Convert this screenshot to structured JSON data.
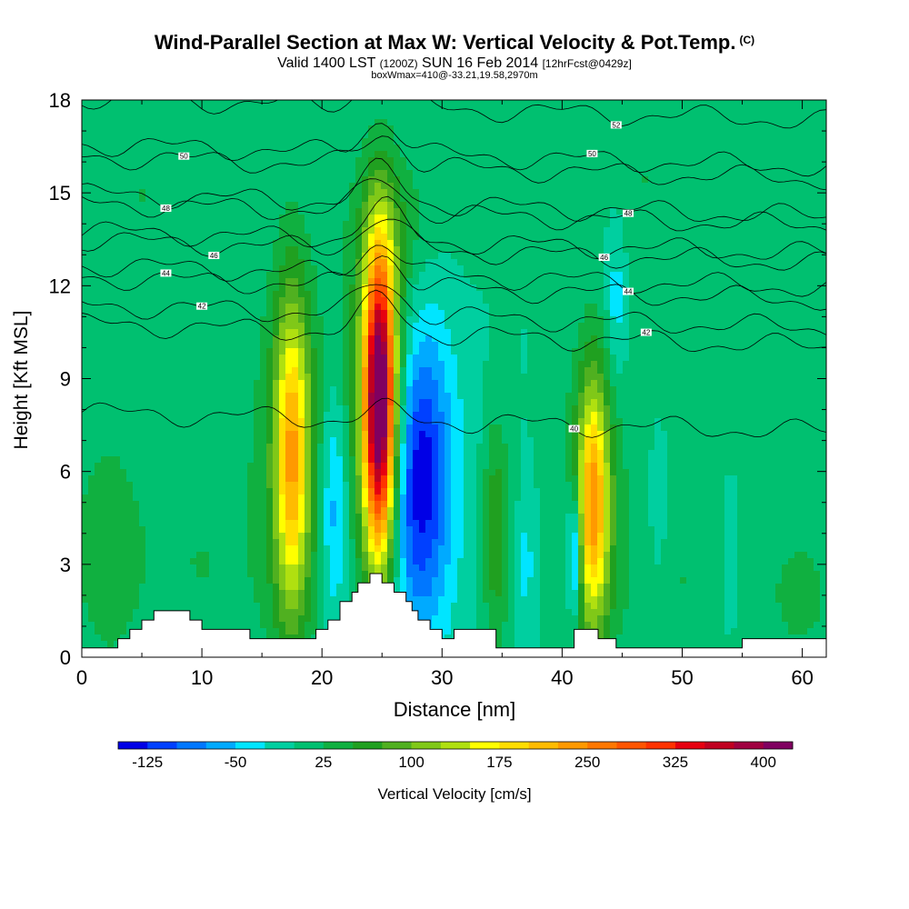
{
  "title": "Wind-Parallel Section at Max W: Vertical Velocity & Pot.Temp.",
  "copyright": "(C)",
  "subtitle": {
    "valid": "Valid 1400 LST",
    "utc": "(1200Z)",
    "date": "SUN 16 Feb 2014",
    "forecast": "[12hrFcst@0429z]"
  },
  "subtitle2": "boxWmax=410@-33.21,19.58,2970m",
  "chart_data": {
    "type": "heatmap",
    "xlabel": "Distance [nm]",
    "ylabel": "Height [Kft MSL]",
    "xlim": [
      0,
      62
    ],
    "ylim": [
      0,
      18
    ],
    "xticks": [
      0,
      10,
      20,
      30,
      40,
      50,
      60
    ],
    "yticks": [
      0,
      3,
      6,
      9,
      12,
      15,
      18
    ],
    "background_value": 0,
    "updrafts_downdrafts": [
      {
        "x": 17.5,
        "z": 6.5,
        "sx": 1.0,
        "sz": 3.6,
        "peak": 175
      },
      {
        "x": 17.5,
        "z": 6.5,
        "sx": 2.2,
        "sz": 4.5,
        "peak": 60
      },
      {
        "x": 24.8,
        "z": 8.2,
        "sx": 0.9,
        "sz": 3.5,
        "peak": 380
      },
      {
        "x": 24.8,
        "z": 8.2,
        "sx": 1.8,
        "sz": 4.2,
        "peak": 120
      },
      {
        "x": 21.0,
        "z": 5.0,
        "sx": 0.8,
        "sz": 2.6,
        "peak": -75
      },
      {
        "x": 28.0,
        "z": 5.8,
        "sx": 1.7,
        "sz": 3.2,
        "peak": -125
      },
      {
        "x": 28.0,
        "z": 5.8,
        "sx": 3.0,
        "sz": 4.3,
        "peak": -35
      },
      {
        "x": 42.6,
        "z": 5.0,
        "sx": 0.9,
        "sz": 2.8,
        "peak": 185
      },
      {
        "x": 42.6,
        "z": 5.0,
        "sx": 1.8,
        "sz": 3.6,
        "peak": 60
      },
      {
        "x": 41.0,
        "z": 3.4,
        "sx": 0.4,
        "sz": 1.5,
        "peak": -120
      },
      {
        "x": 34.5,
        "z": 4.0,
        "sx": 0.8,
        "sz": 2.6,
        "peak": 75
      },
      {
        "x": 2.0,
        "z": 3.5,
        "sx": 2.5,
        "sz": 3.5,
        "peak": 35
      },
      {
        "x": 10.0,
        "z": 3.0,
        "sx": 3.5,
        "sz": 3.0,
        "peak": 25
      },
      {
        "x": 50.0,
        "z": 2.5,
        "sx": 4.0,
        "sz": 2.5,
        "peak": 25
      },
      {
        "x": 60.0,
        "z": 2.0,
        "sx": 2.5,
        "sz": 2.0,
        "peak": 30
      },
      {
        "x": 54.0,
        "z": 3.0,
        "sx": 0.5,
        "sz": 1.5,
        "peak": -45
      },
      {
        "x": 48.0,
        "z": 4.5,
        "sx": 0.5,
        "sz": 1.5,
        "peak": -35
      },
      {
        "x": 37.0,
        "z": 3.0,
        "sx": 0.5,
        "sz": 1.5,
        "peak": -35
      },
      {
        "x": 44.5,
        "z": 11.5,
        "sx": 0.6,
        "sz": 1.8,
        "peak": -45
      },
      {
        "x": 26.0,
        "z": 14.0,
        "sx": 2.5,
        "sz": 1.6,
        "peak": 35
      },
      {
        "x": 5.0,
        "z": 15.0,
        "sx": 2.0,
        "sz": 2.5,
        "peak": 25
      },
      {
        "x": 33.0,
        "z": 16.0,
        "sx": 2.0,
        "sz": 2.0,
        "peak": 25
      },
      {
        "x": 47.0,
        "z": 15.5,
        "sx": 2.0,
        "sz": 2.5,
        "peak": 25
      },
      {
        "x": 58.0,
        "z": 14.0,
        "sx": 2.0,
        "sz": 3.0,
        "peak": 25
      }
    ],
    "terrain": [
      [
        0,
        0.3
      ],
      [
        3,
        0.3
      ],
      [
        3,
        0.6
      ],
      [
        4,
        0.6
      ],
      [
        4,
        0.9
      ],
      [
        5,
        0.9
      ],
      [
        5,
        1.2
      ],
      [
        6,
        1.2
      ],
      [
        6,
        1.5
      ],
      [
        9,
        1.5
      ],
      [
        9,
        1.2
      ],
      [
        10,
        1.2
      ],
      [
        10,
        0.9
      ],
      [
        14,
        0.9
      ],
      [
        14,
        0.6
      ],
      [
        19.5,
        0.6
      ],
      [
        19.5,
        0.9
      ],
      [
        20.5,
        0.9
      ],
      [
        20.5,
        1.2
      ],
      [
        21.5,
        1.2
      ],
      [
        21.5,
        1.8
      ],
      [
        22.5,
        1.8
      ],
      [
        22.5,
        2.1
      ],
      [
        23,
        2.1
      ],
      [
        23,
        2.4
      ],
      [
        24,
        2.4
      ],
      [
        24,
        2.7
      ],
      [
        25,
        2.7
      ],
      [
        25,
        2.4
      ],
      [
        26,
        2.4
      ],
      [
        26,
        2.1
      ],
      [
        27,
        2.1
      ],
      [
        27,
        1.8
      ],
      [
        27.5,
        1.8
      ],
      [
        27.5,
        1.5
      ],
      [
        28,
        1.5
      ],
      [
        28,
        1.2
      ],
      [
        29,
        1.2
      ],
      [
        29,
        0.9
      ],
      [
        30,
        0.9
      ],
      [
        30,
        0.6
      ],
      [
        31,
        0.6
      ],
      [
        31,
        0.9
      ],
      [
        34.5,
        0.9
      ],
      [
        34.5,
        0.3
      ],
      [
        41,
        0.3
      ],
      [
        41,
        0.9
      ],
      [
        43,
        0.9
      ],
      [
        43,
        0.6
      ],
      [
        44.5,
        0.6
      ],
      [
        44.5,
        0.3
      ],
      [
        55,
        0.3
      ],
      [
        55,
        0.6
      ],
      [
        62,
        0.6
      ]
    ],
    "theta_contours": [
      {
        "label": "40",
        "base": 7.6,
        "label_x": 41.0
      },
      {
        "label": "42",
        "base": 10.4,
        "label_x": 47.0
      },
      {
        "label": "42",
        "base": 11.0,
        "label_x": 10.0
      },
      {
        "label": "44",
        "base": 11.9,
        "label_x": 7.0
      },
      {
        "label": "44",
        "base": 12.3,
        "label_x": 45.5
      },
      {
        "label": "46",
        "base": 13.1,
        "label_x": 11.0
      },
      {
        "label": "46",
        "base": 13.4,
        "label_x": 43.5
      },
      {
        "label": "48",
        "base": 14.6,
        "label_x": 7.0
      },
      {
        "label": "48",
        "base": 14.3,
        "label_x": 45.5
      },
      {
        "label": "50",
        "base": 15.8,
        "label_x": 8.5
      },
      {
        "label": "50",
        "base": 16.2,
        "label_x": 42.5
      },
      {
        "label": "52",
        "base": 17.7,
        "label_x": 44.5
      }
    ],
    "colorbar": {
      "label": "Vertical Velocity [cm/s]",
      "min": -150,
      "max": 425,
      "step": 25,
      "tick_labels": [
        "-125",
        "-50",
        "25",
        "100",
        "175",
        "250",
        "325",
        "400"
      ],
      "tick_values": [
        -125,
        -50,
        25,
        100,
        175,
        250,
        325,
        400
      ],
      "colors": [
        "#0000e6",
        "#0040ff",
        "#0077ff",
        "#00aaff",
        "#00e5ff",
        "#00cfa0",
        "#00c070",
        "#10b040",
        "#20a020",
        "#50b020",
        "#80c818",
        "#b0e010",
        "#ffff00",
        "#ffdd00",
        "#ffbb00",
        "#ff9900",
        "#ff7700",
        "#ff5500",
        "#ff3300",
        "#e60010",
        "#c00020",
        "#a00040",
        "#800060"
      ]
    }
  }
}
